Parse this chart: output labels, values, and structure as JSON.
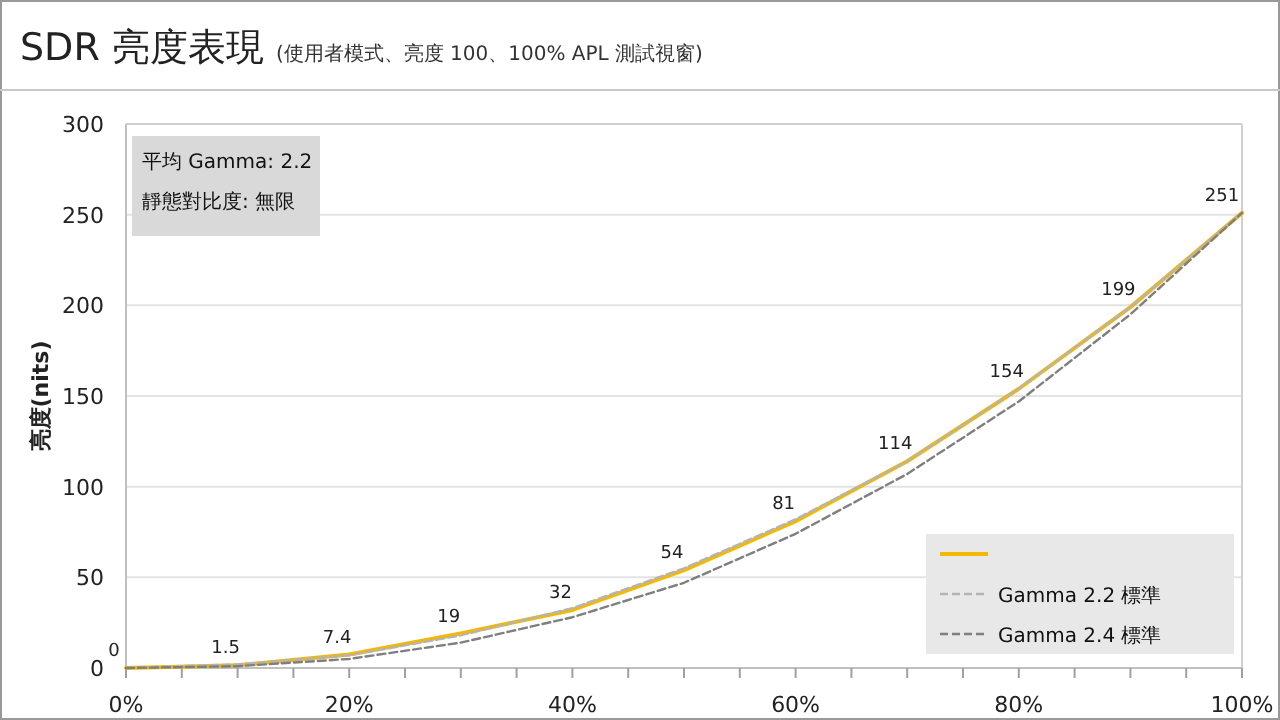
{
  "chart_data": {
    "type": "line",
    "title": "SDR 亮度表現",
    "subtitle": "(使用者模式、亮度 100、100% APL 測試視窗)",
    "ylabel": "亮度(nits)",
    "annotations": [
      "平均 Gamma: 2.2",
      "靜態對比度: 無限"
    ],
    "x": [
      0,
      10,
      20,
      30,
      40,
      50,
      60,
      70,
      80,
      90,
      100
    ],
    "series": [
      {
        "color": "#f5b800",
        "line_style": "solid",
        "values": [
          0,
          1.5,
          7.4,
          19,
          32,
          54,
          81,
          114,
          154,
          199,
          251
        ],
        "value_labels": [
          "0",
          "1.5",
          "7.4",
          "19",
          "32",
          "54",
          "81",
          "114",
          "154",
          "199",
          "251"
        ]
      },
      {
        "name": "Gamma 2.2 標準",
        "color": "#b4b4b4",
        "line_style": "dashed",
        "values": [
          0,
          2,
          7,
          18,
          33,
          55,
          82,
          114,
          154,
          199,
          251
        ]
      },
      {
        "name": "Gamma 2.4 標準",
        "color": "#7f7f7f",
        "line_style": "dashed",
        "values": [
          0,
          1,
          5,
          14,
          28,
          47,
          74,
          107,
          147,
          195,
          251
        ]
      }
    ],
    "xlim": [
      0,
      100
    ],
    "xticks": [
      {
        "value": 0,
        "label": "0%"
      },
      {
        "value": 5,
        "label": null
      },
      {
        "value": 10,
        "label": null
      },
      {
        "value": 15,
        "label": null
      },
      {
        "value": 20,
        "label": "20%"
      },
      {
        "value": 25,
        "label": null
      },
      {
        "value": 30,
        "label": null
      },
      {
        "value": 35,
        "label": null
      },
      {
        "value": 40,
        "label": "40%"
      },
      {
        "value": 45,
        "label": null
      },
      {
        "value": 50,
        "label": null
      },
      {
        "value": 55,
        "label": null
      },
      {
        "value": 60,
        "label": "60%"
      },
      {
        "value": 65,
        "label": null
      },
      {
        "value": 70,
        "label": null
      },
      {
        "value": 75,
        "label": null
      },
      {
        "value": 80,
        "label": "80%"
      },
      {
        "value": 85,
        "label": null
      },
      {
        "value": 90,
        "label": null
      },
      {
        "value": 95,
        "label": null
      },
      {
        "value": 100,
        "label": "100%"
      }
    ],
    "ylim": [
      0,
      300
    ],
    "yticks": [
      0,
      50,
      100,
      150,
      200,
      250,
      300
    ],
    "grid": "y",
    "legend": "bottom right",
    "marker": "none"
  }
}
